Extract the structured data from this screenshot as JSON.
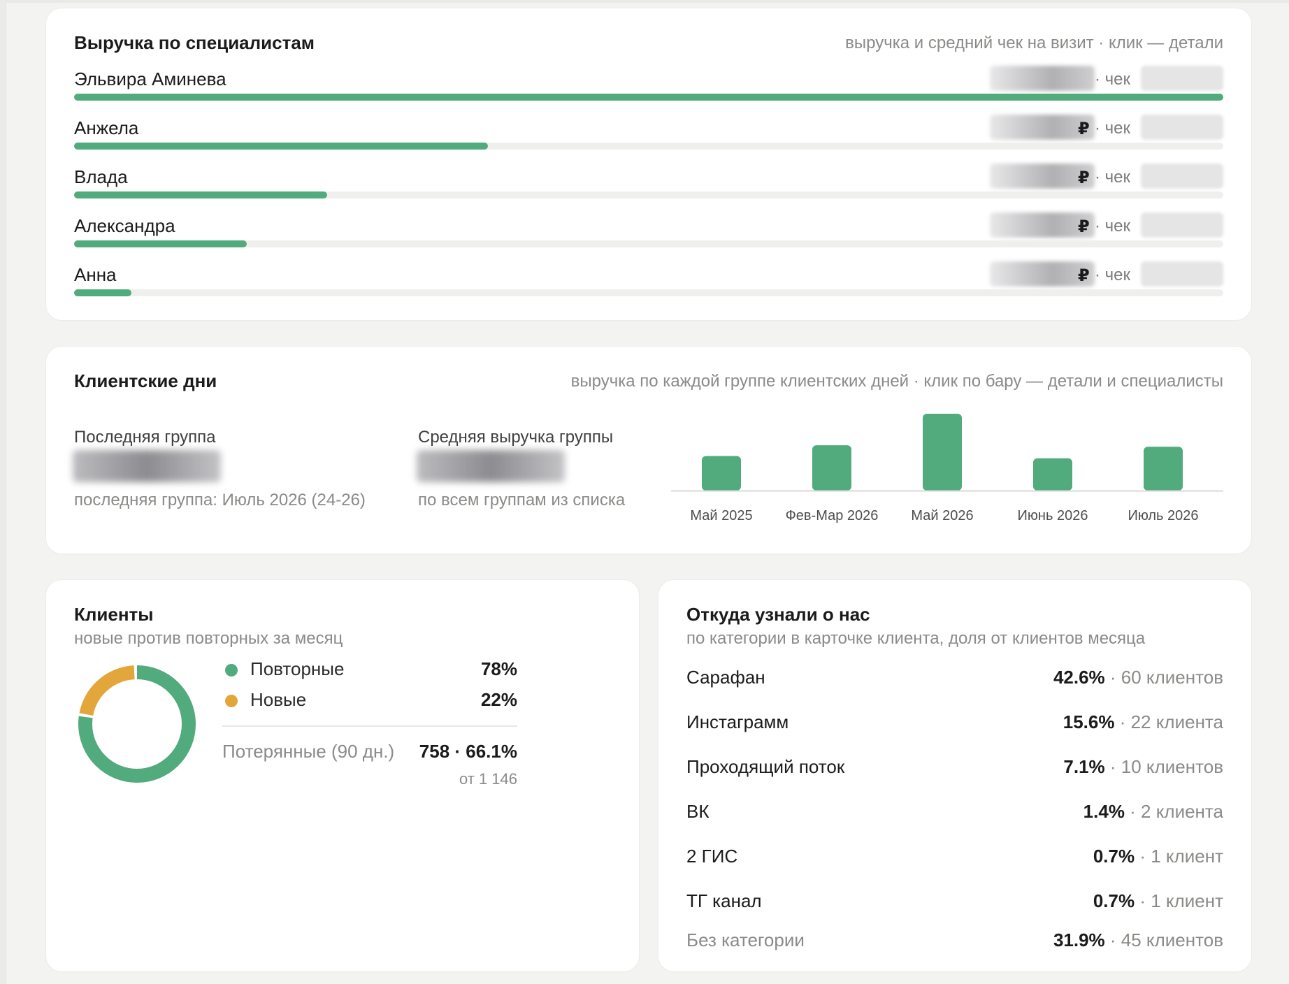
{
  "colors": {
    "accent": "#52ab7c",
    "secondary": "#e3a63a",
    "track": "#efefed"
  },
  "specialists": {
    "title": "Выручка по специалистам",
    "hint": "выручка и средний чек на визит · клик — детали",
    "check_word": "· чек",
    "rows": [
      {
        "name": "Эльвира Аминева",
        "share": 1.0,
        "ruble_visible": false
      },
      {
        "name": "Анжела",
        "share": 0.36,
        "ruble_visible": true
      },
      {
        "name": "Влада",
        "share": 0.22,
        "ruble_visible": true
      },
      {
        "name": "Александра",
        "share": 0.15,
        "ruble_visible": true
      },
      {
        "name": "Анна",
        "share": 0.05,
        "ruble_visible": true
      }
    ]
  },
  "client_days": {
    "title": "Клиентские дни",
    "hint": "выручка по каждой группе клиентских дней · клик по бару — детали и специалисты",
    "last_group_label": "Последняя группа",
    "last_group_sub": "последняя группа: Июль 2026 (24-26)",
    "avg_label": "Средняя выручка группы",
    "avg_sub": "по всем группам из списка",
    "chart_data": {
      "type": "bar",
      "categories": [
        "Май 2025",
        "Фев-Мар 2026",
        "Май 2026",
        "Июнь 2026",
        "Июль 2026"
      ],
      "values": [
        0.45,
        0.59,
        1.0,
        0.42,
        0.57
      ],
      "title": "",
      "xlabel": "",
      "ylabel": ""
    }
  },
  "clients": {
    "title": "Клиенты",
    "subtitle": "новые против повторных за месяц",
    "repeat_label": "Повторные",
    "repeat_value": "78%",
    "repeat_share": 0.78,
    "new_label": "Новые",
    "new_value": "22%",
    "lost_label": "Потерянные (90 дн.)",
    "lost_value": "758 · 66.1%",
    "lost_sub": "от 1 146"
  },
  "sources": {
    "title": "Откуда узнали о нас",
    "subtitle": "по категории в карточке клиента, доля от клиентов месяца",
    "rows": [
      {
        "name": "Сарафан",
        "pct": "42.6%",
        "count": "· 60 клиентов",
        "muted": false
      },
      {
        "name": "Инстаграмм",
        "pct": "15.6%",
        "count": "· 22 клиента",
        "muted": false
      },
      {
        "name": "Проходящий поток",
        "pct": "7.1%",
        "count": "· 10 клиентов",
        "muted": false
      },
      {
        "name": "ВК",
        "pct": "1.4%",
        "count": "· 2 клиента",
        "muted": false
      },
      {
        "name": "2 ГИС",
        "pct": "0.7%",
        "count": "· 1 клиент",
        "muted": false
      },
      {
        "name": "ТГ канал",
        "pct": "0.7%",
        "count": "· 1 клиент",
        "muted": false
      },
      {
        "name": "Без категории",
        "pct": "31.9%",
        "count": "· 45 клиентов",
        "muted": true
      }
    ]
  }
}
